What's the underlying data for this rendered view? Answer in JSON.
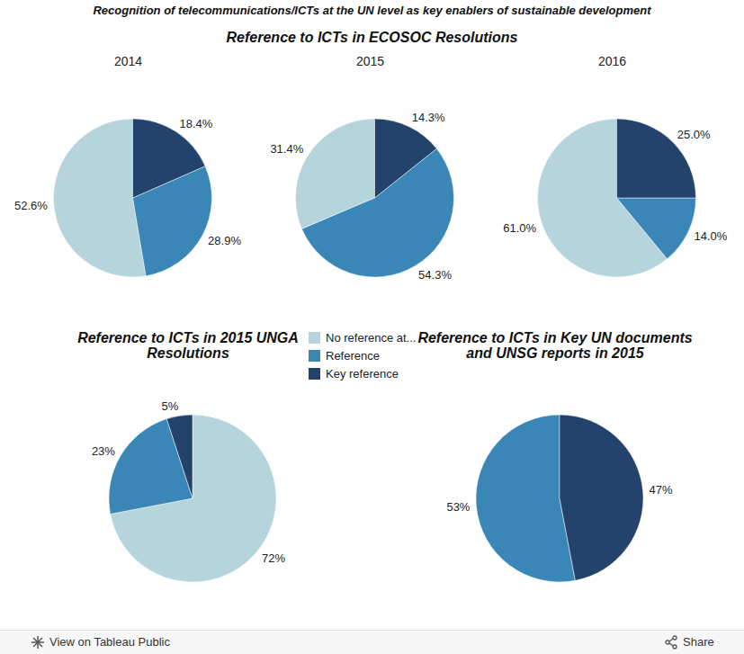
{
  "title": "Recognition of telecommunications/ICTs at the UN level as key enablers of sustainable development",
  "footer": {
    "link": "View on Tableau Public",
    "share": "Share"
  },
  "chart_data": [
    {
      "type": "pie",
      "title": "Reference to ICTs in ECOSOC Resolutions",
      "categories": [
        "No reference at...",
        "Reference",
        "Key reference"
      ],
      "colors": [
        "#b5d4db",
        "#3a87b7",
        "#23436d"
      ],
      "legend": "bottom",
      "data_labels": true,
      "series": [
        {
          "name": "2014",
          "values": [
            52.6,
            28.9,
            18.4
          ],
          "value_labels": [
            "52.6%",
            "28.9%",
            "18.4%"
          ]
        },
        {
          "name": "2015",
          "values": [
            31.4,
            54.3,
            14.3
          ],
          "value_labels": [
            "31.4%",
            "54.3%",
            "14.3%"
          ]
        },
        {
          "name": "2016",
          "values": [
            61.0,
            14.0,
            25.0
          ],
          "value_labels": [
            "61.0%",
            "14.0%",
            "25.0%"
          ]
        }
      ]
    },
    {
      "type": "pie",
      "title": "Reference to ICTs in 2015 UNGA Resolutions",
      "categories": [
        "No reference at...",
        "Reference",
        "Key reference"
      ],
      "colors": [
        "#b5d4db",
        "#3a87b7",
        "#23436d"
      ],
      "data_labels": true,
      "values": [
        72,
        23,
        5
      ],
      "value_labels": [
        "72%",
        "23%",
        "5%"
      ]
    },
    {
      "type": "pie",
      "title": "Reference to ICTs in Key UN documents and UNSG reports in 2015",
      "categories": [
        "Reference",
        "Key reference"
      ],
      "colors": [
        "#3a87b7",
        "#23436d"
      ],
      "data_labels": true,
      "values": [
        53,
        47
      ],
      "value_labels": [
        "53%",
        "47%"
      ]
    }
  ]
}
